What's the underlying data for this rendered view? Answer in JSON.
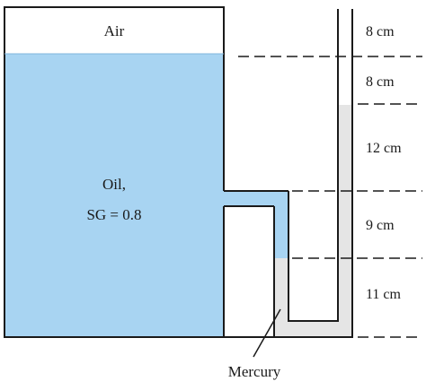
{
  "labels": {
    "air": "Air",
    "oil_line1": "Oil,",
    "oil_line2": "SG = 0.8",
    "mercury": "Mercury"
  },
  "dimensions": [
    "8 cm",
    "8 cm",
    "12 cm",
    "9 cm",
    "11 cm"
  ],
  "colors": {
    "oil": "#a8d4f2",
    "mercury": "#e5e5e5",
    "air": "#ffffff",
    "outline": "#1a1a1a"
  }
}
